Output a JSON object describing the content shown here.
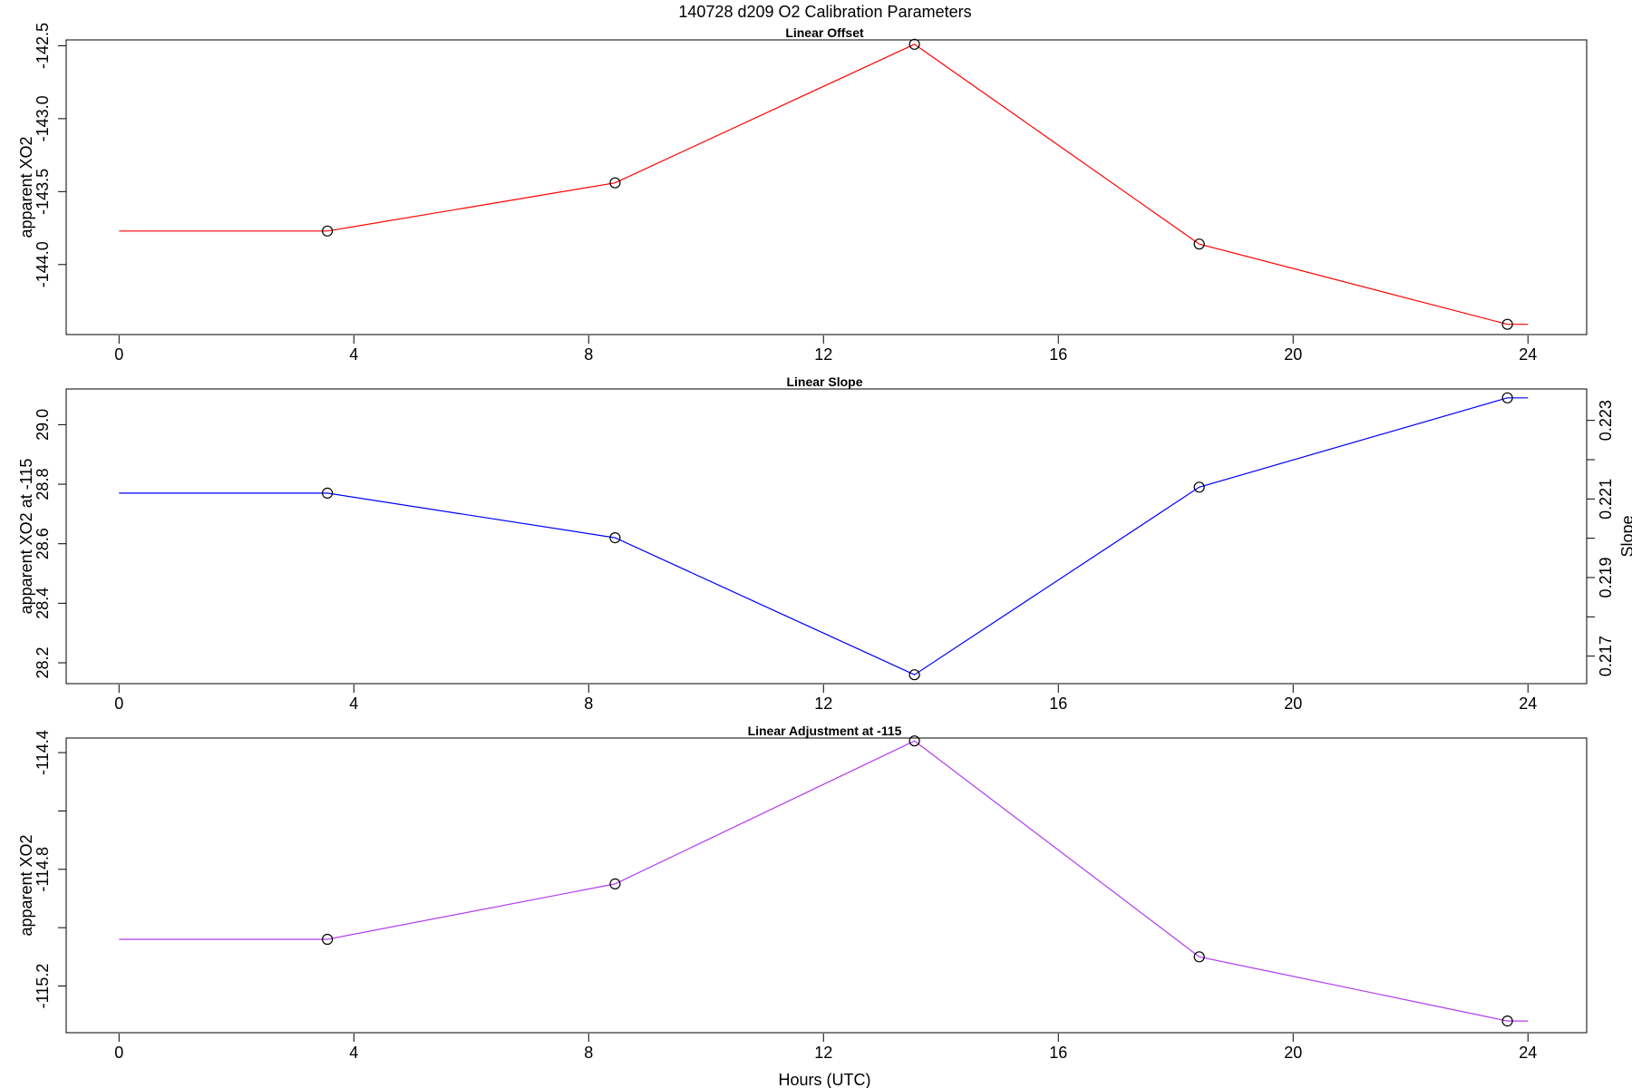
{
  "title": "140728   d209   O2 Calibration Parameters",
  "chart_data": [
    {
      "type": "line",
      "title": "Linear Offset",
      "xlabel": "",
      "ylabel": "apparent XO2",
      "xlim": [
        -0.9,
        25
      ],
      "ylim": [
        -144.48,
        -142.46
      ],
      "xticks": [
        0,
        4,
        8,
        12,
        16,
        20,
        24
      ],
      "xtick_labels": [
        "0",
        "4",
        "8",
        "12",
        "16",
        "20",
        "24"
      ],
      "yticks": [
        -144.0,
        -143.5,
        -143.0,
        -142.5
      ],
      "ytick_labels": [
        "-144.0",
        "-143.5",
        "-143.0",
        "-142.5"
      ],
      "grid": false,
      "series": [
        {
          "color": "#ff0000",
          "line_x": [
            0,
            3.55,
            8.45,
            13.55,
            18.4,
            23.65,
            24
          ],
          "line_y": [
            -143.77,
            -143.77,
            -143.44,
            -142.49,
            -143.86,
            -144.41,
            -144.41
          ],
          "points_x": [
            3.55,
            8.45,
            13.55,
            18.4,
            23.65
          ],
          "points_y": [
            -143.77,
            -143.44,
            -142.49,
            -143.86,
            -144.41
          ]
        }
      ]
    },
    {
      "type": "line",
      "title": "Linear Slope",
      "xlabel": "",
      "ylabel": "apparent XO2 at -115",
      "ylabel_right": "Slope",
      "xlim": [
        -0.9,
        25
      ],
      "ylim": [
        28.13,
        29.12
      ],
      "ylim_right": [
        0.2163,
        0.2238
      ],
      "xticks": [
        0,
        4,
        8,
        12,
        16,
        20,
        24
      ],
      "xtick_labels": [
        "0",
        "4",
        "8",
        "12",
        "16",
        "20",
        "24"
      ],
      "yticks": [
        28.2,
        28.4,
        28.6,
        28.8,
        29.0
      ],
      "ytick_labels": [
        "28.2",
        "28.4",
        "28.6",
        "28.8",
        "29.0"
      ],
      "yticks_right": [
        0.217,
        0.218,
        0.219,
        0.22,
        0.221,
        0.222,
        0.223
      ],
      "ytick_labels_right": [
        "0.217",
        "",
        "0.219",
        "",
        "0.221",
        "",
        "0.223"
      ],
      "grid": false,
      "series": [
        {
          "color": "#0000ff",
          "line_x": [
            0,
            3.55,
            8.45,
            13.55,
            18.4,
            23.65,
            24
          ],
          "line_y": [
            28.77,
            28.77,
            28.62,
            28.16,
            28.79,
            29.09,
            29.09
          ],
          "points_x": [
            3.55,
            8.45,
            13.55,
            18.4,
            23.65
          ],
          "points_y": [
            28.77,
            28.62,
            28.16,
            28.79,
            29.09
          ]
        }
      ]
    },
    {
      "type": "line",
      "title": "Linear Adjustment at -115",
      "xlabel": "Hours (UTC)",
      "ylabel": "apparent XO2",
      "xlim": [
        -0.9,
        25
      ],
      "ylim": [
        -115.36,
        -114.35
      ],
      "xticks": [
        0,
        4,
        8,
        12,
        16,
        20,
        24
      ],
      "xtick_labels": [
        "0",
        "4",
        "8",
        "12",
        "16",
        "20",
        "24"
      ],
      "yticks": [
        -115.2,
        -115.0,
        -114.8,
        -114.6,
        -114.4
      ],
      "ytick_labels": [
        "-115.2",
        "",
        "-114.8",
        "",
        "-114.4"
      ],
      "grid": false,
      "series": [
        {
          "color": "#b23aee",
          "line_x": [
            0,
            3.55,
            8.45,
            13.55,
            18.4,
            23.65,
            24
          ],
          "line_y": [
            -115.04,
            -115.04,
            -114.85,
            -114.36,
            -115.1,
            -115.32,
            -115.32
          ],
          "points_x": [
            3.55,
            8.45,
            13.55,
            18.4,
            23.65
          ],
          "points_y": [
            -115.04,
            -114.85,
            -114.36,
            -115.1,
            -115.32
          ]
        }
      ]
    }
  ]
}
